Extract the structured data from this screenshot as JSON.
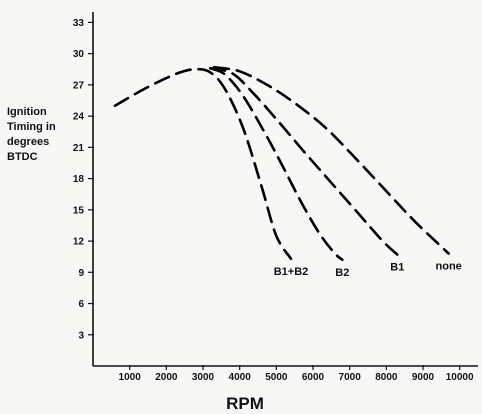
{
  "chart_data": {
    "type": "line",
    "title": "",
    "xlabel": "RPM",
    "ylabel_lines": [
      "Ignition",
      "Timing in",
      "degrees",
      "BTDC"
    ],
    "xlim": [
      0,
      10500
    ],
    "ylim": [
      0,
      34
    ],
    "x_ticks": [
      1000,
      2000,
      3000,
      4000,
      5000,
      6000,
      7000,
      8000,
      9000,
      10000
    ],
    "x_tick_labels": [
      "1000",
      "2000",
      "3000",
      "4000",
      "5000",
      "6000",
      "7000",
      "8000",
      "9000",
      "10000"
    ],
    "y_ticks": [
      3,
      6,
      9,
      12,
      15,
      18,
      21,
      24,
      27,
      30,
      33
    ],
    "y_tick_labels": [
      "3",
      "6",
      "9",
      "12",
      "15",
      "18",
      "21",
      "24",
      "27",
      "30",
      "33"
    ],
    "grid": false,
    "line_style": "dashed",
    "line_color": "#000000",
    "series": [
      {
        "name": "B1+B2",
        "x": [
          600,
          1500,
          2300,
          2800,
          3200,
          3600,
          4100,
          4600,
          5000,
          5400
        ],
        "y": [
          25,
          26.8,
          28.1,
          28.5,
          28.2,
          26.6,
          22.8,
          17.2,
          12.5,
          10.3
        ]
      },
      {
        "name": "B2",
        "x": [
          3200,
          3600,
          4100,
          4700,
          5200,
          5700,
          6200,
          6600,
          6800
        ],
        "y": [
          28.6,
          28.0,
          25.9,
          22.3,
          19.0,
          15.6,
          12.6,
          10.8,
          10.2
        ]
      },
      {
        "name": "B1",
        "x": [
          3200,
          3800,
          4400,
          5100,
          5800,
          6500,
          7200,
          7900,
          8300
        ],
        "y": [
          28.6,
          28.1,
          26.1,
          23.3,
          20.4,
          17.6,
          14.8,
          12.0,
          10.7
        ]
      },
      {
        "name": "none",
        "x": [
          3300,
          4000,
          4800,
          5600,
          6400,
          7200,
          8000,
          8800,
          9700
        ],
        "y": [
          28.7,
          28.3,
          26.9,
          25.0,
          22.7,
          19.8,
          16.8,
          13.8,
          10.8
        ]
      }
    ]
  }
}
